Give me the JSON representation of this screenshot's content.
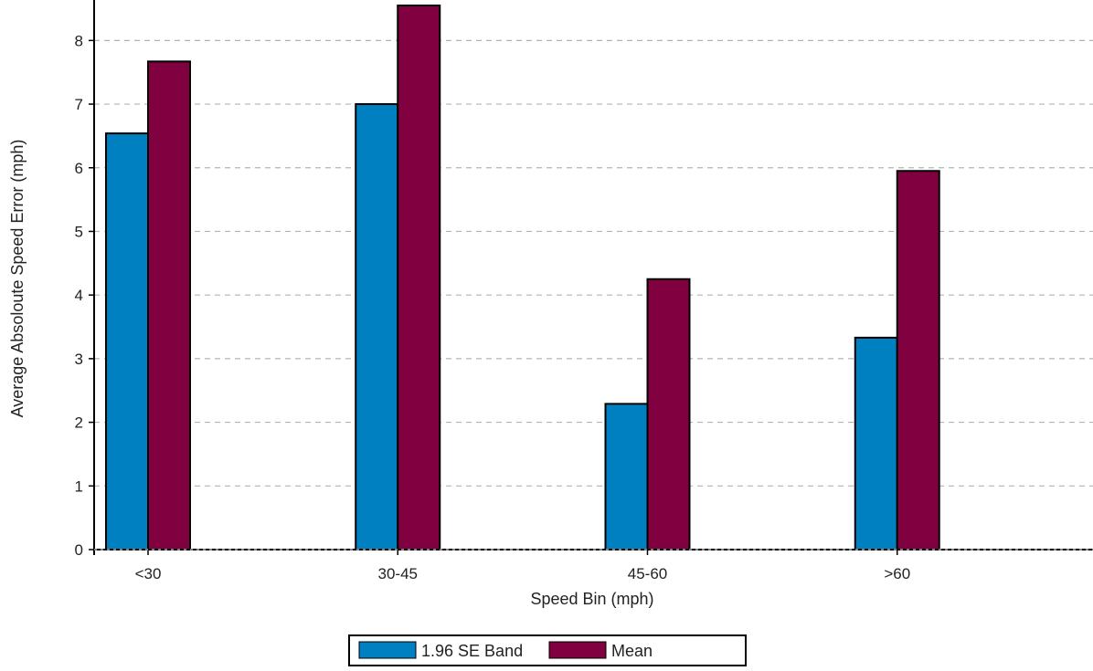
{
  "chart_data": {
    "type": "bar",
    "title": "",
    "xlabel": "Speed Bin (mph)",
    "ylabel": "Average Absoloute Speed Error (mph)",
    "categories": [
      "<30",
      "30-45",
      "45-60",
      ">60"
    ],
    "series": [
      {
        "name": "1.96 SE Band",
        "color": "#0080c0",
        "values": [
          6.54,
          7.0,
          2.29,
          3.33
        ]
      },
      {
        "name": "Mean",
        "color": "#800040",
        "values": [
          7.67,
          8.55,
          4.25,
          5.95
        ]
      }
    ],
    "ylim": [
      0,
      8.55
    ],
    "yticks": [
      0,
      1,
      2,
      3,
      4,
      5,
      6,
      7,
      8
    ],
    "grid": true,
    "grid_style": "dashed-horizontal",
    "legend_position": "bottom-center"
  }
}
